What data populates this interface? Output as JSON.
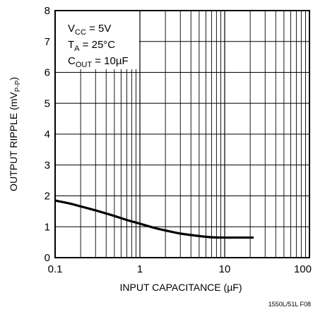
{
  "chart_data": {
    "type": "line",
    "xscale": "log",
    "xlim": [
      0.1,
      100
    ],
    "ylim": [
      0,
      8
    ],
    "grid": true,
    "x_ticks": [
      {
        "value": 0.1,
        "label": "0.1"
      },
      {
        "value": 1,
        "label": "1"
      },
      {
        "value": 10,
        "label": "10"
      },
      {
        "value": 100,
        "label": "100"
      }
    ],
    "y_ticks": [
      {
        "value": 0,
        "label": "0"
      },
      {
        "value": 1,
        "label": "1"
      },
      {
        "value": 2,
        "label": "2"
      },
      {
        "value": 3,
        "label": "3"
      },
      {
        "value": 4,
        "label": "4"
      },
      {
        "value": 5,
        "label": "5"
      },
      {
        "value": 6,
        "label": "6"
      },
      {
        "value": 7,
        "label": "7"
      },
      {
        "value": 8,
        "label": "8"
      }
    ],
    "xlabel": {
      "main": "INPUT CAPACITANCE (",
      "mu": "µ",
      "tail": "F)"
    },
    "ylabel": {
      "main": "OUTPUT RIPPLE (mV",
      "sub": "P-P",
      "tail": ")"
    },
    "annotations": [
      {
        "main": "V",
        "sub": "CC",
        "tail": " = 5V"
      },
      {
        "main": "T",
        "sub": "A",
        "tail": " = 25°C"
      },
      {
        "main": "C",
        "sub": "OUT",
        "tail": " = 10µF"
      }
    ],
    "figure_code": "1550L/51L F08",
    "series": [
      {
        "x": [
          0.1,
          0.15,
          0.2,
          0.3,
          0.4,
          0.5,
          0.7,
          1,
          1.5,
          2,
          3,
          5,
          7,
          10,
          15,
          22
        ],
        "y": [
          1.85,
          1.75,
          1.66,
          1.53,
          1.43,
          1.35,
          1.22,
          1.1,
          0.96,
          0.88,
          0.78,
          0.7,
          0.66,
          0.65,
          0.65,
          0.65
        ]
      }
    ]
  }
}
